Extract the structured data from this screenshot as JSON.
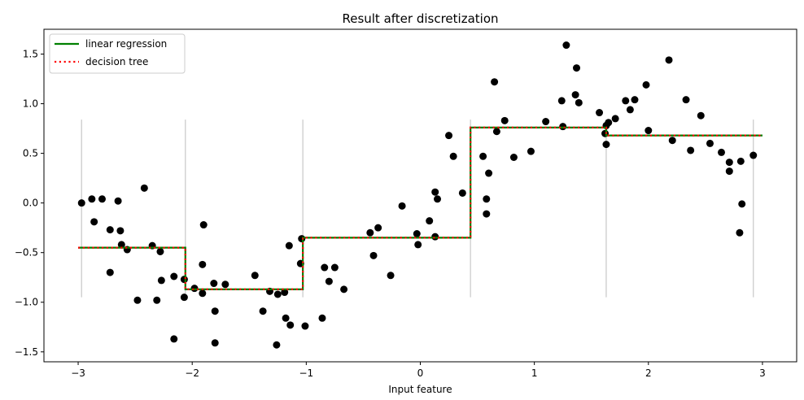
{
  "chart_data": {
    "type": "line",
    "title": "Result after discretization",
    "xlabel": "Input feature",
    "ylabel": "",
    "xlim": [
      -3.3,
      3.3
    ],
    "ylim": [
      -1.6,
      1.75
    ],
    "xticks": [
      -3,
      -2,
      -1,
      0,
      1,
      2,
      3
    ],
    "xtick_labels": [
      "−3",
      "−2",
      "−1",
      "0",
      "1",
      "2",
      "3"
    ],
    "yticks": [
      -1.5,
      -1.0,
      -0.5,
      0.0,
      0.5,
      1.0,
      1.5
    ],
    "ytick_labels": [
      "−1.5",
      "−1.0",
      "−0.5",
      "0.0",
      "0.5",
      "1.0",
      "1.5"
    ],
    "legend": {
      "position": "top-left"
    },
    "bin_edges": [
      -2.97,
      -2.06,
      -1.03,
      0.44,
      1.63,
      2.92
    ],
    "bin_edge_ylim": [
      -0.95,
      0.84
    ],
    "series": [
      {
        "name": "linear regression",
        "color": "#008000",
        "style": "solid",
        "step_x": [
          -3.0,
          -2.06,
          -2.06,
          -1.03,
          -1.03,
          0.44,
          0.44,
          1.63,
          1.63,
          3.0
        ],
        "step_y": [
          -0.45,
          -0.45,
          -0.87,
          -0.87,
          -0.35,
          -0.35,
          0.76,
          0.76,
          0.68,
          0.68
        ]
      },
      {
        "name": "decision tree",
        "color": "#ff0000",
        "style": "dotted",
        "step_x": [
          -3.0,
          -2.06,
          -2.06,
          -1.03,
          -1.03,
          0.44,
          0.44,
          1.63,
          1.63,
          3.0
        ],
        "step_y": [
          -0.45,
          -0.45,
          -0.87,
          -0.87,
          -0.35,
          -0.35,
          0.76,
          0.76,
          0.68,
          0.68
        ]
      }
    ],
    "scatter": {
      "color": "#000000",
      "points": [
        [
          -2.97,
          0.0
        ],
        [
          -2.88,
          0.04
        ],
        [
          -2.86,
          -0.19
        ],
        [
          -2.79,
          0.04
        ],
        [
          -2.72,
          -0.27
        ],
        [
          -2.72,
          -0.7
        ],
        [
          -2.65,
          0.02
        ],
        [
          -2.63,
          -0.28
        ],
        [
          -2.62,
          -0.42
        ],
        [
          -2.57,
          -0.47
        ],
        [
          -2.48,
          -0.98
        ],
        [
          -2.42,
          0.15
        ],
        [
          -2.35,
          -0.43
        ],
        [
          -2.31,
          -0.98
        ],
        [
          -2.28,
          -0.49
        ],
        [
          -2.27,
          -0.78
        ],
        [
          -2.16,
          -0.74
        ],
        [
          -2.16,
          -1.37
        ],
        [
          -2.07,
          -0.77
        ],
        [
          -2.07,
          -0.95
        ],
        [
          -1.98,
          -0.86
        ],
        [
          -1.91,
          -0.91
        ],
        [
          -1.91,
          -0.62
        ],
        [
          -1.9,
          -0.22
        ],
        [
          -1.81,
          -0.81
        ],
        [
          -1.8,
          -1.09
        ],
        [
          -1.8,
          -1.41
        ],
        [
          -1.71,
          -0.82
        ],
        [
          -1.45,
          -0.73
        ],
        [
          -1.38,
          -1.09
        ],
        [
          -1.32,
          -0.89
        ],
        [
          -1.26,
          -1.43
        ],
        [
          -1.25,
          -0.92
        ],
        [
          -1.19,
          -0.9
        ],
        [
          -1.18,
          -1.16
        ],
        [
          -1.15,
          -0.43
        ],
        [
          -1.14,
          -1.23
        ],
        [
          -1.05,
          -0.61
        ],
        [
          -1.04,
          -0.36
        ],
        [
          -1.01,
          -1.24
        ],
        [
          -0.86,
          -1.16
        ],
        [
          -0.84,
          -0.65
        ],
        [
          -0.8,
          -0.79
        ],
        [
          -0.75,
          -0.65
        ],
        [
          -0.67,
          -0.87
        ],
        [
          -0.44,
          -0.3
        ],
        [
          -0.41,
          -0.53
        ],
        [
          -0.37,
          -0.25
        ],
        [
          -0.26,
          -0.73
        ],
        [
          -0.16,
          -0.03
        ],
        [
          -0.03,
          -0.31
        ],
        [
          -0.02,
          -0.42
        ],
        [
          0.08,
          -0.18
        ],
        [
          0.13,
          -0.34
        ],
        [
          0.13,
          0.11
        ],
        [
          0.15,
          0.04
        ],
        [
          0.25,
          0.68
        ],
        [
          0.29,
          0.47
        ],
        [
          0.37,
          0.1
        ],
        [
          0.55,
          0.47
        ],
        [
          0.58,
          0.04
        ],
        [
          0.58,
          -0.11
        ],
        [
          0.6,
          0.3
        ],
        [
          0.65,
          1.22
        ],
        [
          0.67,
          0.72
        ],
        [
          0.74,
          0.83
        ],
        [
          0.82,
          0.46
        ],
        [
          0.97,
          0.52
        ],
        [
          1.1,
          0.82
        ],
        [
          1.24,
          1.03
        ],
        [
          1.25,
          0.77
        ],
        [
          1.28,
          1.59
        ],
        [
          1.36,
          1.09
        ],
        [
          1.37,
          1.36
        ],
        [
          1.39,
          1.01
        ],
        [
          1.57,
          0.91
        ],
        [
          1.62,
          0.7
        ],
        [
          1.63,
          0.78
        ],
        [
          1.63,
          0.59
        ],
        [
          1.65,
          0.81
        ],
        [
          1.71,
          0.85
        ],
        [
          1.8,
          1.03
        ],
        [
          1.84,
          0.94
        ],
        [
          1.88,
          1.04
        ],
        [
          1.98,
          1.19
        ],
        [
          2.0,
          0.73
        ],
        [
          2.18,
          1.44
        ],
        [
          2.21,
          0.63
        ],
        [
          2.33,
          1.04
        ],
        [
          2.37,
          0.53
        ],
        [
          2.46,
          0.88
        ],
        [
          2.54,
          0.6
        ],
        [
          2.64,
          0.51
        ],
        [
          2.71,
          0.41
        ],
        [
          2.71,
          0.32
        ],
        [
          2.8,
          -0.3
        ],
        [
          2.81,
          0.42
        ],
        [
          2.82,
          -0.01
        ],
        [
          2.92,
          0.48
        ]
      ]
    }
  }
}
